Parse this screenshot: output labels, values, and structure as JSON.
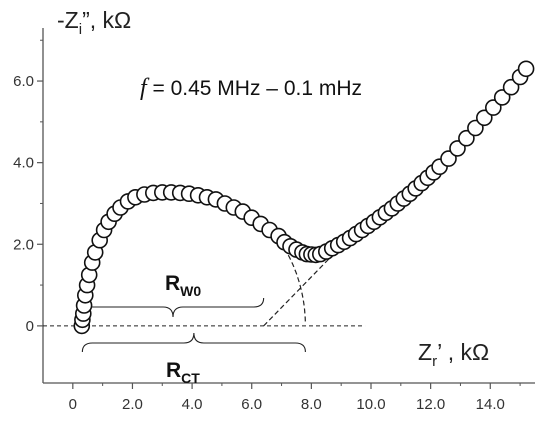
{
  "chart_data": {
    "type": "scatter",
    "xlabel": "Zr', kΩ",
    "ylabel": "-Zi'', kΩ",
    "xlim": [
      -1.0,
      15.5
    ],
    "ylim": [
      -1.4,
      7.3
    ],
    "x_ticks": [
      "0",
      "2.0",
      "4.0",
      "6.0",
      "8.0",
      "10.0",
      "12.0",
      "14.0"
    ],
    "y_ticks": [
      "0",
      "2.0",
      "4.0",
      "6.0"
    ],
    "grid": false,
    "annotations": {
      "frequency_prefix": "f",
      "frequency_range": " = 0.45 MHz – 0.1 mHz",
      "rw0_label": "R",
      "rw0_subscript": "W0",
      "rct_label": "R",
      "rct_subscript": "CT"
    },
    "series": [
      {
        "marker": "open-circle",
        "x": [
          0.3,
          0.32,
          0.35,
          0.38,
          0.42,
          0.48,
          0.55,
          0.65,
          0.75,
          0.9,
          1.05,
          1.2,
          1.4,
          1.6,
          1.85,
          2.1,
          2.4,
          2.7,
          3.0,
          3.3,
          3.6,
          3.9,
          4.2,
          4.5,
          4.8,
          5.1,
          5.4,
          5.7,
          6.0,
          6.3,
          6.6,
          6.9,
          7.1,
          7.3,
          7.5,
          7.7,
          7.85,
          8.0,
          8.15,
          8.3,
          8.5,
          8.7,
          8.9,
          9.1,
          9.3,
          9.5,
          9.7,
          9.9,
          10.1,
          10.3,
          10.5,
          10.7,
          10.9,
          11.1,
          11.3,
          11.5,
          11.7,
          11.9,
          12.1,
          12.3,
          12.6,
          12.9,
          13.2,
          13.5,
          13.8,
          14.1,
          14.4,
          14.7,
          15.0,
          15.2
        ],
        "y": [
          0.0,
          0.15,
          0.3,
          0.5,
          0.75,
          1.0,
          1.25,
          1.55,
          1.8,
          2.1,
          2.35,
          2.55,
          2.75,
          2.9,
          3.05,
          3.15,
          3.22,
          3.26,
          3.27,
          3.27,
          3.26,
          3.24,
          3.2,
          3.15,
          3.1,
          3.0,
          2.9,
          2.8,
          2.65,
          2.5,
          2.35,
          2.2,
          2.05,
          1.95,
          1.87,
          1.8,
          1.76,
          1.75,
          1.74,
          1.76,
          1.82,
          1.9,
          1.98,
          2.06,
          2.15,
          2.25,
          2.35,
          2.45,
          2.55,
          2.66,
          2.77,
          2.88,
          3.0,
          3.12,
          3.24,
          3.37,
          3.5,
          3.63,
          3.76,
          3.9,
          4.1,
          4.35,
          4.6,
          4.85,
          5.1,
          5.35,
          5.6,
          5.85,
          6.1,
          6.3
        ]
      }
    ]
  }
}
